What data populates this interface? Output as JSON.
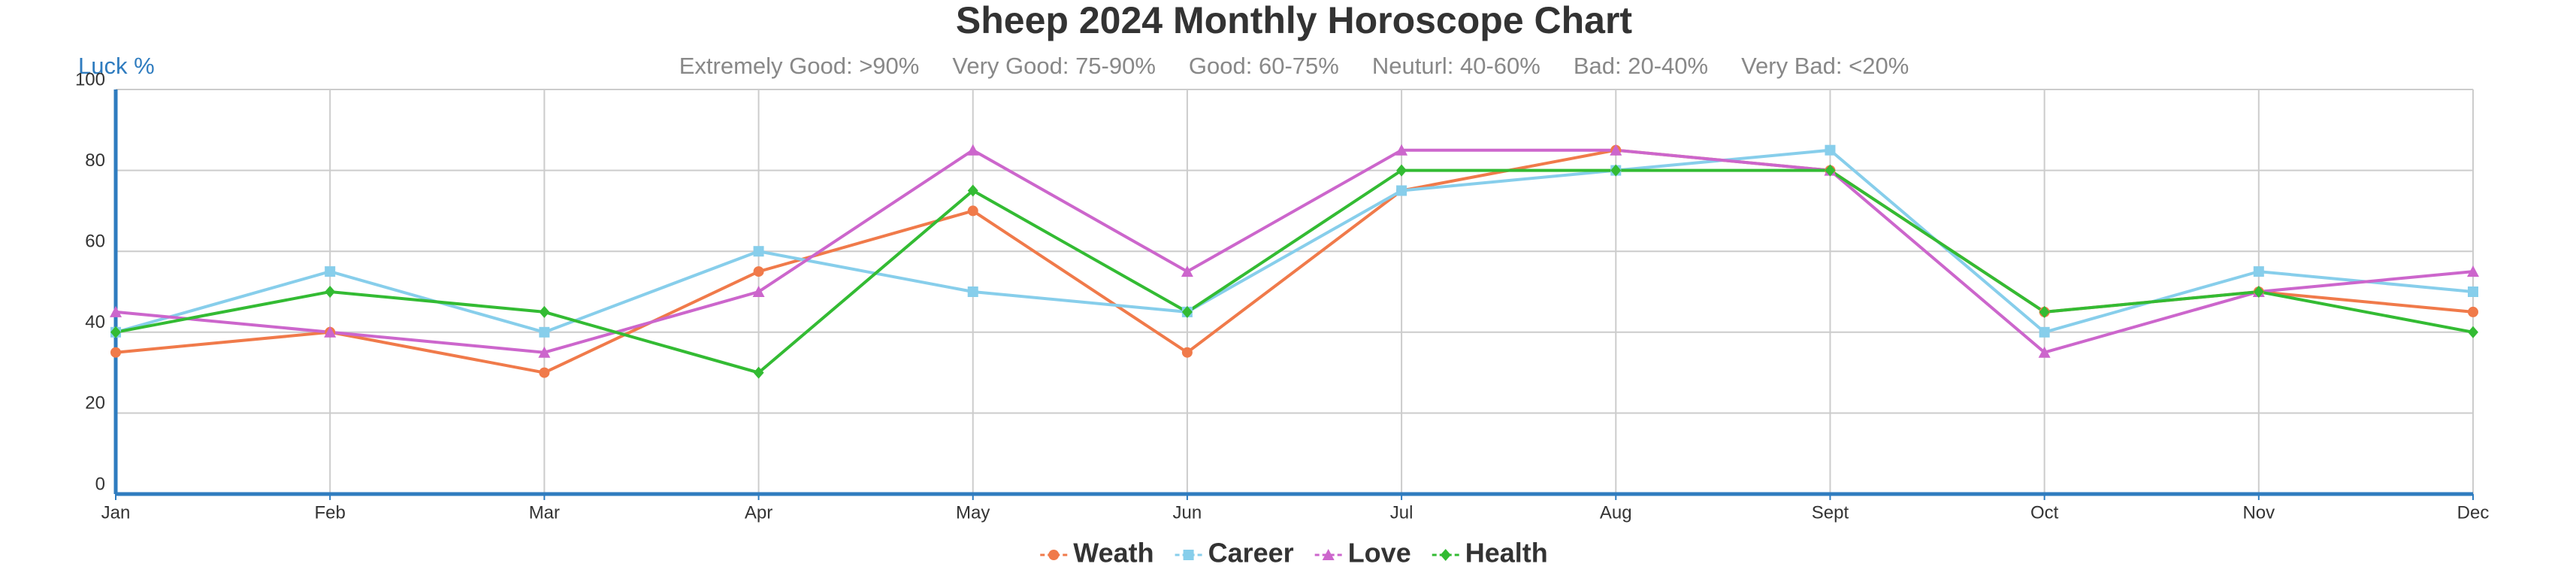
{
  "chart_data": {
    "type": "line",
    "title": "Sheep 2024 Monthly Horoscope Chart",
    "y_label": "Luck %",
    "subtitle_items": [
      "Extremely Good: >90%",
      "Very Good: 75-90%",
      "Good: 60-75%",
      "Neuturl: 40-60%",
      "Bad: 20-40%",
      "Very Bad: <20%"
    ],
    "categories": [
      "Jan",
      "Feb",
      "Mar",
      "Apr",
      "May",
      "Jun",
      "Jul",
      "Aug",
      "Sept",
      "Oct",
      "Nov",
      "Dec"
    ],
    "series": [
      {
        "name": "Weath",
        "color": "#f07a4a",
        "marker": "circle",
        "values": [
          35,
          40,
          30,
          55,
          70,
          35,
          75,
          85,
          80,
          45,
          50,
          45
        ]
      },
      {
        "name": "Career",
        "color": "#87ceeb",
        "marker": "square",
        "values": [
          40,
          55,
          40,
          60,
          50,
          45,
          75,
          80,
          85,
          40,
          55,
          50
        ]
      },
      {
        "name": "Love",
        "color": "#cc66cc",
        "marker": "triangle",
        "values": [
          45,
          40,
          35,
          50,
          85,
          55,
          85,
          85,
          80,
          35,
          50,
          55
        ]
      },
      {
        "name": "Health",
        "color": "#33bb33",
        "marker": "diamond",
        "values": [
          40,
          50,
          45,
          30,
          75,
          45,
          80,
          80,
          80,
          45,
          50,
          40
        ]
      }
    ],
    "ylim": [
      0,
      100
    ],
    "yticks": [
      0,
      20,
      40,
      60,
      80,
      100
    ],
    "grid": true
  }
}
